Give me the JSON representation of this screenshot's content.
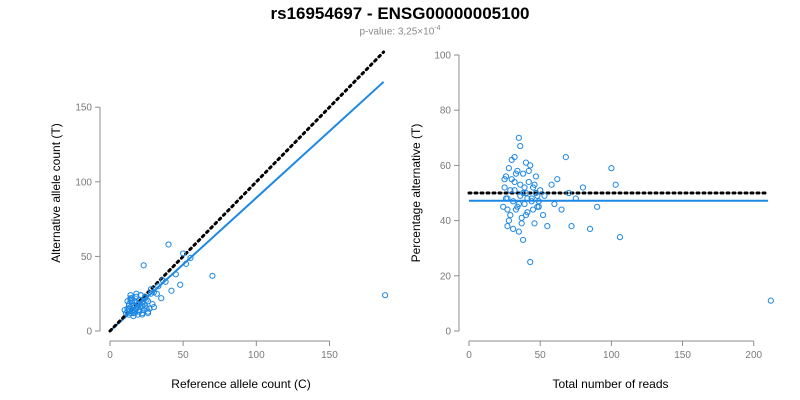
{
  "title": "rs16954697 - ENSG00000005100",
  "subtitle": {
    "prefix": "p-value: 3,25×10",
    "exponent": "-4"
  },
  "colors": {
    "accent": "#1e88e5",
    "reference_line": "#000000",
    "axis": "#8c8c8c",
    "tick_text": "#7a7a7a"
  },
  "chart_data": [
    {
      "type": "scatter",
      "xlabel": "Reference allele count (C)",
      "ylabel": "Alternative allele count (T)",
      "xlim": [
        0,
        190
      ],
      "ylim": [
        0,
        185
      ],
      "xticks": [
        0,
        50,
        100,
        150
      ],
      "yticks": [
        0,
        50,
        100,
        150
      ],
      "x": [
        10,
        11,
        12,
        12,
        13,
        13,
        13,
        14,
        14,
        14,
        15,
        15,
        15,
        16,
        16,
        16,
        17,
        17,
        18,
        18,
        19,
        19,
        20,
        20,
        21,
        21,
        22,
        22,
        23,
        23,
        24,
        25,
        26,
        27,
        28,
        29,
        30,
        32,
        33,
        35,
        38,
        40,
        42,
        45,
        48,
        50,
        52,
        55,
        70,
        12,
        14,
        16,
        18,
        20,
        22,
        24,
        26,
        13,
        15,
        17,
        19,
        21,
        23,
        25,
        14,
        16,
        18,
        20,
        22,
        24,
        26,
        28,
        30,
        36,
        188
      ],
      "y": [
        14,
        12,
        13,
        20,
        15,
        11,
        18,
        12,
        16,
        24,
        13,
        19,
        22,
        10,
        14,
        17,
        12,
        20,
        15,
        23,
        11,
        18,
        13,
        21,
        16,
        24,
        12,
        19,
        14,
        44,
        17,
        21,
        20,
        15,
        28,
        18,
        26,
        25,
        30,
        22,
        33,
        58,
        27,
        38,
        31,
        52,
        45,
        49,
        37,
        15,
        22,
        14,
        25,
        18,
        11,
        23,
        12,
        17,
        20,
        13,
        16,
        24,
        18,
        15,
        21,
        12,
        19,
        14,
        17,
        22,
        13,
        25,
        16,
        34,
        24
      ],
      "series": [
        {
          "name": "",
          "kind": "regression",
          "slope": 0.893,
          "intercept": 0,
          "style": "solid"
        },
        {
          "name": "",
          "kind": "reference",
          "slope": 1,
          "intercept": 0,
          "style": "dotted"
        }
      ]
    },
    {
      "type": "scatter",
      "xlabel": "Total number of reads",
      "ylabel": "Percentage alternative (T)",
      "xlim": [
        0,
        210
      ],
      "ylim": [
        0,
        100
      ],
      "xticks": [
        0,
        50,
        100,
        150,
        200
      ],
      "yticks": [
        0,
        20,
        40,
        60,
        80,
        100
      ],
      "x": [
        24,
        25,
        26,
        27,
        27,
        28,
        29,
        30,
        31,
        32,
        32,
        33,
        34,
        35,
        35,
        36,
        36,
        37,
        38,
        38,
        39,
        40,
        40,
        41,
        42,
        43,
        44,
        45,
        46,
        47,
        48,
        49,
        50,
        52,
        53,
        55,
        58,
        60,
        62,
        65,
        68,
        70,
        72,
        75,
        80,
        85,
        90,
        100,
        103,
        106,
        26,
        28,
        30,
        32,
        34,
        36,
        38,
        40,
        42,
        44,
        46,
        48,
        25,
        27,
        29,
        31,
        33,
        35,
        37,
        39,
        41,
        43,
        45,
        47,
        49,
        212
      ],
      "y": [
        45,
        52,
        56,
        38,
        48,
        59,
        42,
        55,
        47,
        63,
        51,
        44,
        58,
        36,
        70,
        49,
        53,
        41,
        57,
        33,
        46,
        61,
        50,
        43,
        54,
        25,
        48,
        52,
        39,
        56,
        45,
        47,
        51,
        42,
        49,
        38,
        53,
        46,
        55,
        44,
        63,
        50,
        38,
        48,
        52,
        37,
        45,
        59,
        53,
        34,
        48,
        40,
        62,
        54,
        45,
        67,
        50,
        42,
        58,
        47,
        53,
        49,
        55,
        44,
        51,
        37,
        57,
        46,
        39,
        52,
        48,
        60,
        44,
        50,
        45,
        11
      ],
      "series": [
        {
          "name": "",
          "kind": "mean",
          "value": 47.2,
          "style": "solid"
        },
        {
          "name": "",
          "kind": "reference",
          "value": 50,
          "style": "dotted"
        }
      ]
    }
  ]
}
